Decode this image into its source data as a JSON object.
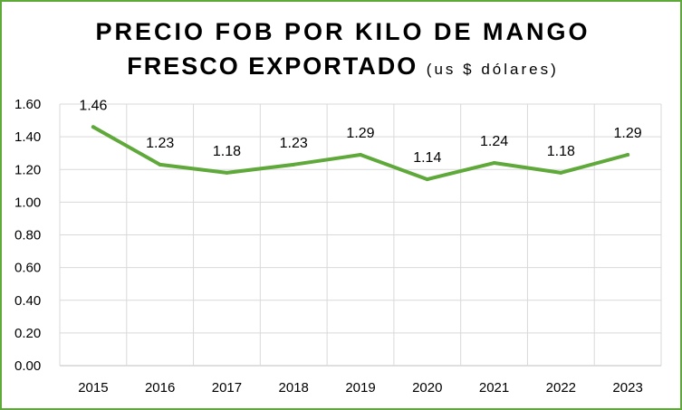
{
  "chart_data": {
    "type": "line",
    "title_line1": "PRECIO FOB POR KILO DE MANGO",
    "title_line2": "FRESCO EXPORTADO",
    "title_unit": "(us $ dólares)",
    "x": [
      "2015",
      "2016",
      "2017",
      "2018",
      "2019",
      "2020",
      "2021",
      "2022",
      "2023"
    ],
    "series": [
      {
        "values": [
          1.46,
          1.23,
          1.18,
          1.23,
          1.29,
          1.14,
          1.24,
          1.18,
          1.29
        ]
      }
    ],
    "data_labels": [
      "1.46",
      "1.23",
      "1.18",
      "1.23",
      "1.29",
      "1.14",
      "1.24",
      "1.18",
      "1.29"
    ],
    "y_ticks": [
      "0.00",
      "0.20",
      "0.40",
      "0.60",
      "0.80",
      "1.00",
      "1.20",
      "1.40",
      "1.60"
    ],
    "ylim": [
      0,
      1.6
    ],
    "grid": true,
    "legend": "none",
    "colors": {
      "line": "#5fa83a",
      "grid": "#d9d9d9",
      "border": "#5fa83a"
    }
  }
}
